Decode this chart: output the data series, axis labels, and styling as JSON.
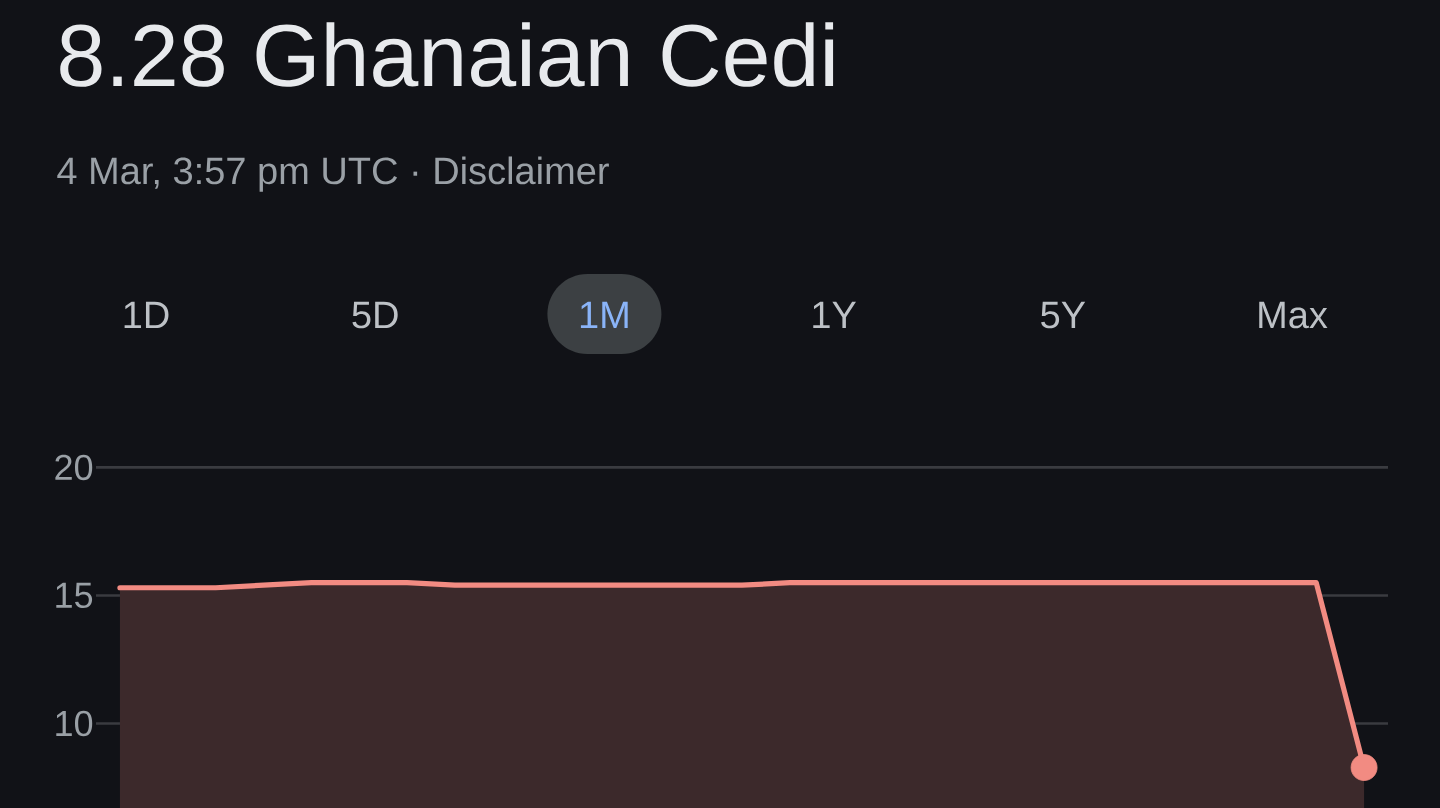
{
  "chart_data": {
    "type": "area",
    "title": "8.28 Ghanaian Cedi",
    "subtitle": "4 Mar, 3:57 pm UTC · Disclaimer",
    "annotations": [
      "1D",
      "5D",
      "1M",
      "1Y",
      "5Y",
      "Max"
    ],
    "categories": [
      null,
      null,
      null,
      null,
      null,
      null,
      null,
      null,
      null,
      null,
      null,
      null,
      null,
      null,
      null,
      null,
      null,
      null,
      null,
      null,
      null,
      null,
      null,
      null,
      null,
      null,
      null
    ],
    "series": [
      {
        "color": "#f28b82",
        "values": [
          15.3,
          15.3,
          15.3,
          15.4,
          15.5,
          15.5,
          15.5,
          15.4,
          15.4,
          15.4,
          15.4,
          15.4,
          15.4,
          15.4,
          15.5,
          15.5,
          15.5,
          15.5,
          15.5,
          15.5,
          15.5,
          15.5,
          15.5,
          15.5,
          15.5,
          15.5,
          8.28
        ]
      },
      {
        "type": "scatter",
        "color": "#f28b82",
        "values": [
          null,
          null,
          null,
          null,
          null,
          null,
          null,
          null,
          null,
          null,
          null,
          null,
          null,
          null,
          null,
          null,
          null,
          null,
          null,
          null,
          null,
          null,
          null,
          null,
          null,
          null,
          8.28
        ]
      }
    ],
    "ylim": [
      6.7,
      20
    ],
    "yticks": [
      10,
      15,
      20
    ],
    "grid": "y"
  }
}
